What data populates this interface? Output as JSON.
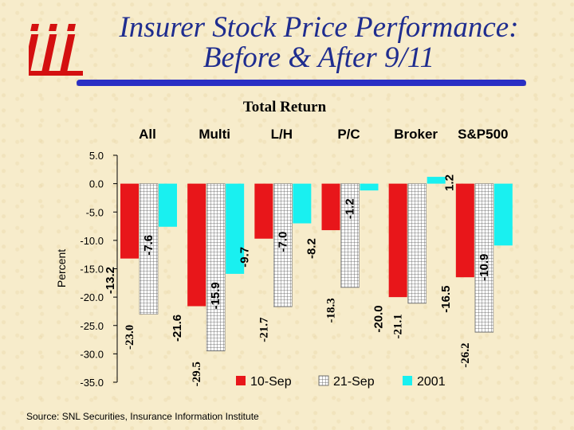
{
  "slide": {
    "title_line1": "Insurer Stock Price Performance:",
    "title_line2": "Before & After 9/11",
    "source": "Source:  SNL Securities, Insurance Information Institute"
  },
  "colors": {
    "accent": "#2a2fc4",
    "logo": "#d41010"
  },
  "chart_data": {
    "type": "bar",
    "title": "Total Return",
    "ylabel": "Percent",
    "xlabel": "",
    "ylim": [
      -35,
      5
    ],
    "yticks": [
      5,
      0,
      -5,
      -10,
      -15,
      -20,
      -25,
      -30,
      -35
    ],
    "ytick_labels": [
      "5.0",
      "0.0",
      "-5.0",
      "-10.0",
      "-15.0",
      "-20.0",
      "-25.0",
      "-30.0",
      "-35.0"
    ],
    "categories": [
      "All",
      "Multi",
      "L/H",
      "P/C",
      "Broker",
      "S&P500"
    ],
    "series": [
      {
        "name": "10-Sep",
        "color": "#e8161a",
        "pattern": "solid",
        "values": [
          -13.2,
          -21.6,
          -9.7,
          -8.2,
          -20.0,
          -16.5
        ],
        "labels": [
          "-13.2",
          "-21.6",
          "-9.7",
          "-8.2",
          "-20.0",
          "-16.5"
        ]
      },
      {
        "name": "21-Sep",
        "color": "#ffffff",
        "pattern": "grid",
        "values": [
          -23.0,
          -29.5,
          -21.7,
          -18.3,
          -21.1,
          -26.2
        ],
        "labels": [
          "-23.0",
          "-29.5",
          "-21.7",
          "-18.3",
          "-21.1",
          "-26.2"
        ]
      },
      {
        "name": "2001",
        "color": "#19f0f0",
        "pattern": "solid",
        "values": [
          -7.6,
          -15.9,
          -7.0,
          -1.2,
          1.2,
          -10.9
        ],
        "labels": [
          "-7.6",
          "-15.9",
          "-7.0",
          "-1.2",
          "1.2",
          "-10.9"
        ]
      }
    ],
    "grid": false,
    "legend_position": "bottom-right"
  }
}
